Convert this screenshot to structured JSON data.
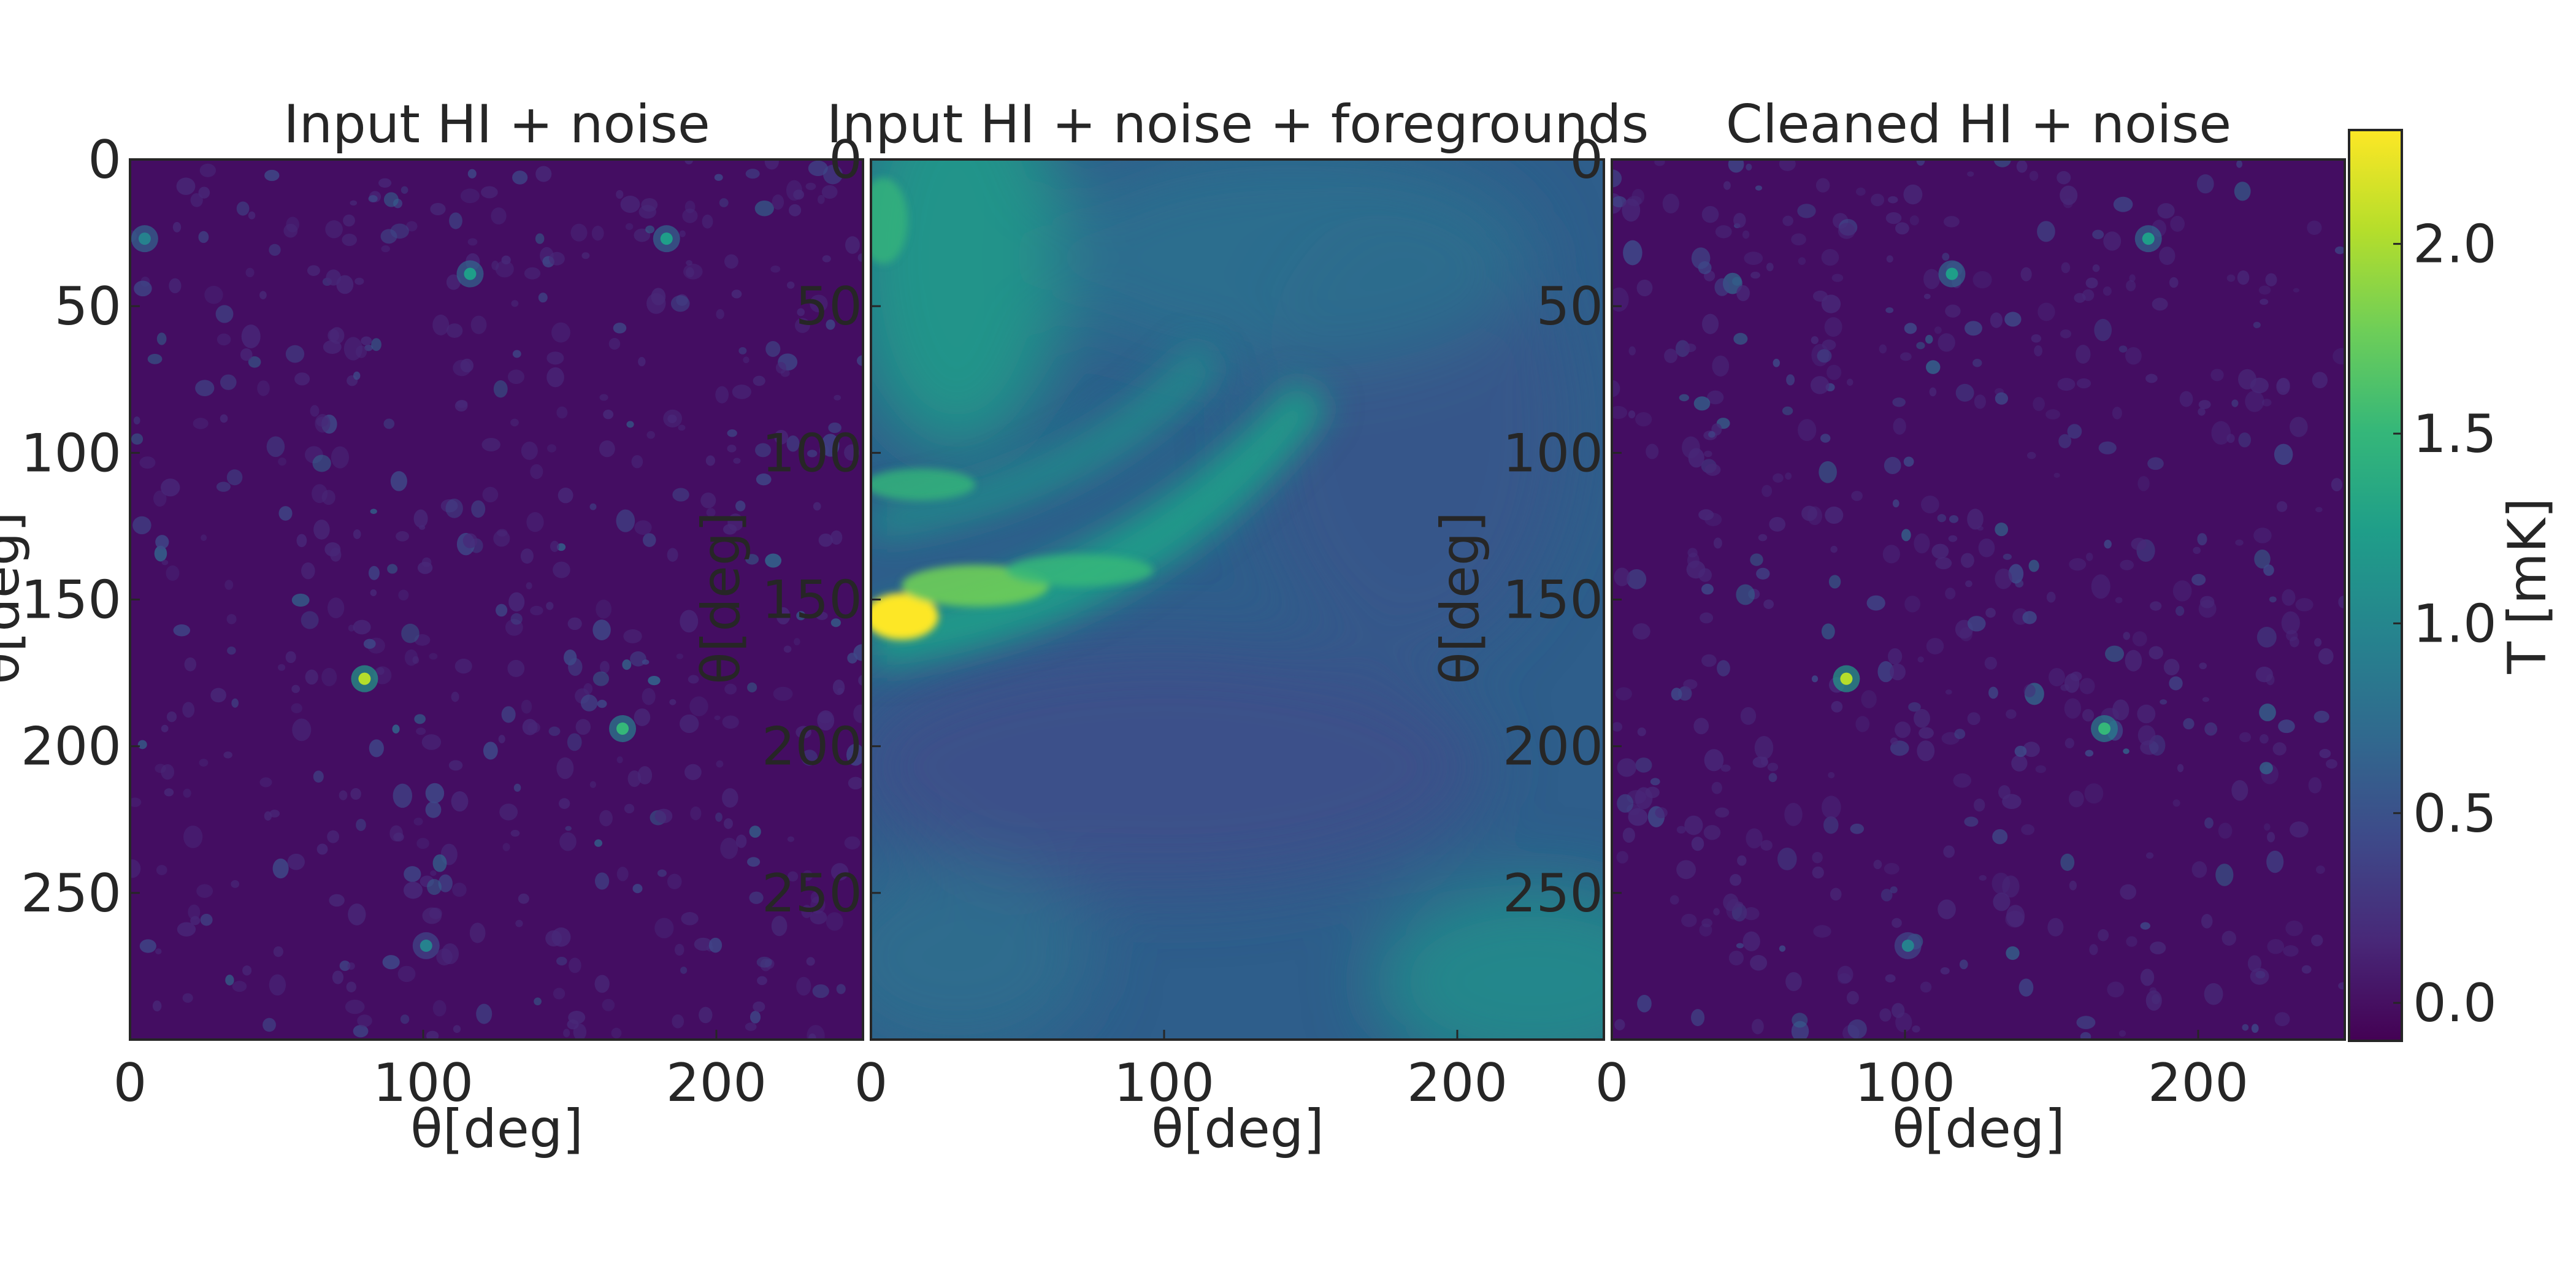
{
  "chart_data": [
    {
      "type": "heatmap",
      "title": "Input HI + noise",
      "xlabel": "θ[deg]",
      "ylabel": "θ[deg]",
      "x_ticks": [
        "0",
        "100",
        "200"
      ],
      "y_ticks": [
        "0",
        "50",
        "100",
        "150",
        "200",
        "250"
      ],
      "x_range": [
        0,
        250
      ],
      "y_range": [
        0,
        300
      ],
      "y_inverted": true,
      "field_description": "dark purple noise field with scattered faint cyan point sources",
      "bright_sources": [
        {
          "x": 80,
          "y": 177,
          "value": 2.1
        },
        {
          "x": 168,
          "y": 194,
          "value": 1.6
        },
        {
          "x": 116,
          "y": 39,
          "value": 1.2
        },
        {
          "x": 183,
          "y": 27,
          "value": 1.3
        },
        {
          "x": 5,
          "y": 27,
          "value": 1.0
        },
        {
          "x": 101,
          "y": 268,
          "value": 0.9
        }
      ]
    },
    {
      "type": "heatmap",
      "title": "Input HI + noise + foregrounds",
      "xlabel": "θ[deg]",
      "ylabel": "θ[deg]",
      "x_ticks": [
        "0",
        "100",
        "200"
      ],
      "y_ticks": [
        "0",
        "50",
        "100",
        "150",
        "200",
        "250"
      ],
      "x_range": [
        0,
        250
      ],
      "y_range": [
        0,
        300
      ],
      "y_inverted": true,
      "field_description": "smooth diffuse foreground emission with a bright curved ridge on the left",
      "bright_sources": [
        {
          "x": 8,
          "y": 155,
          "value": 2.2
        },
        {
          "x": 30,
          "y": 148,
          "value": 1.8
        },
        {
          "x": 0,
          "y": 30,
          "value": 1.5
        }
      ]
    },
    {
      "type": "heatmap",
      "title": "Cleaned HI + noise",
      "xlabel": "θ[deg]",
      "ylabel": "θ[deg]",
      "x_ticks": [
        "0",
        "100",
        "200"
      ],
      "y_ticks": [
        "0",
        "50",
        "100",
        "150",
        "200",
        "250"
      ],
      "x_range": [
        0,
        250
      ],
      "y_range": [
        0,
        300
      ],
      "y_inverted": true,
      "field_description": "dark purple noise field with scattered faint cyan point sources",
      "bright_sources": [
        {
          "x": 80,
          "y": 177,
          "value": 2.1
        },
        {
          "x": 168,
          "y": 194,
          "value": 1.6
        },
        {
          "x": 116,
          "y": 39,
          "value": 1.2
        },
        {
          "x": 183,
          "y": 27,
          "value": 1.3
        },
        {
          "x": 101,
          "y": 268,
          "value": 0.9
        }
      ]
    }
  ],
  "colorbar": {
    "label": "T [mK]",
    "ticks": [
      "0.0",
      "0.5",
      "1.0",
      "1.5",
      "2.0"
    ],
    "range": [
      -0.1,
      2.3
    ],
    "colormap": "viridis"
  },
  "colors": {
    "viridis": [
      "#440154",
      "#482878",
      "#3e4989",
      "#31688e",
      "#26828e",
      "#1f9e89",
      "#35b779",
      "#6ece58",
      "#b5de2b",
      "#fde725"
    ],
    "text": "#262626",
    "background": "#ffffff"
  }
}
